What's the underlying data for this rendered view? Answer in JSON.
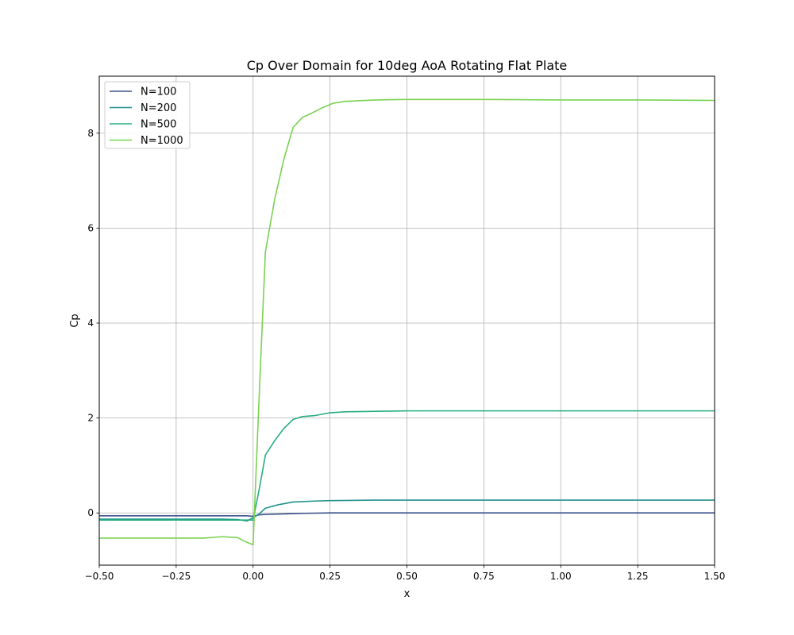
{
  "chart_data": {
    "type": "line",
    "title": "Cp Over Domain for 10deg AoA Rotating Flat Plate",
    "xlabel": "x",
    "ylabel": "Cp",
    "xlim": [
      -0.5,
      1.5
    ],
    "ylim": [
      -1.1,
      9.2
    ],
    "xticks": [
      -0.5,
      -0.25,
      0.0,
      0.25,
      0.5,
      0.75,
      1.0,
      1.25,
      1.5
    ],
    "xtick_labels": [
      "−0.50",
      "−0.25",
      "0.00",
      "0.25",
      "0.50",
      "0.75",
      "1.00",
      "1.25",
      "1.50"
    ],
    "yticks": [
      0,
      2,
      4,
      6,
      8
    ],
    "ytick_labels": [
      "0",
      "2",
      "4",
      "6",
      "8"
    ],
    "grid": true,
    "legend": "upper-left",
    "series": [
      {
        "name": "N=100",
        "color": "#3b528b",
        "x": [
          -0.5,
          -0.2,
          -0.05,
          -0.02,
          0.0,
          0.02,
          0.05,
          0.1,
          0.15,
          0.25,
          0.5,
          0.75,
          1.0,
          1.25,
          1.5
        ],
        "y": [
          -0.06,
          -0.06,
          -0.06,
          -0.06,
          -0.07,
          -0.04,
          -0.03,
          -0.02,
          -0.01,
          0.0,
          0.0,
          0.0,
          0.0,
          0.0,
          0.0
        ]
      },
      {
        "name": "N=200",
        "color": "#21918c",
        "x": [
          -0.5,
          -0.2,
          -0.1,
          -0.05,
          -0.02,
          0.0,
          0.02,
          0.04,
          0.08,
          0.13,
          0.2,
          0.25,
          0.4,
          0.75,
          1.0,
          1.25,
          1.5
        ],
        "y": [
          -0.13,
          -0.13,
          -0.13,
          -0.14,
          -0.17,
          -0.1,
          -0.02,
          0.1,
          0.17,
          0.23,
          0.25,
          0.26,
          0.27,
          0.27,
          0.27,
          0.27,
          0.27
        ]
      },
      {
        "name": "N=500",
        "color": "#27ad81",
        "x": [
          -0.5,
          -0.2,
          -0.15,
          -0.1,
          -0.05,
          -0.02,
          0.0,
          0.02,
          0.04,
          0.07,
          0.1,
          0.13,
          0.16,
          0.2,
          0.25,
          0.3,
          0.4,
          0.5,
          0.75,
          1.0,
          1.25,
          1.5
        ],
        "y": [
          -0.15,
          -0.15,
          -0.15,
          -0.15,
          -0.15,
          -0.15,
          -0.15,
          0.5,
          1.22,
          1.52,
          1.78,
          1.97,
          2.03,
          2.05,
          2.11,
          2.13,
          2.14,
          2.15,
          2.15,
          2.15,
          2.15,
          2.15
        ]
      },
      {
        "name": "N=1000",
        "color": "#7ad151",
        "x": [
          -0.5,
          -0.25,
          -0.16,
          -0.1,
          -0.05,
          -0.02,
          0.0,
          0.02,
          0.04,
          0.07,
          0.1,
          0.13,
          0.16,
          0.19,
          0.22,
          0.26,
          0.3,
          0.4,
          0.5,
          0.75,
          1.0,
          1.25,
          1.5
        ],
        "y": [
          -0.53,
          -0.53,
          -0.53,
          -0.5,
          -0.52,
          -0.62,
          -0.67,
          2.5,
          5.5,
          6.6,
          7.45,
          8.12,
          8.33,
          8.42,
          8.52,
          8.63,
          8.67,
          8.7,
          8.71,
          8.71,
          8.7,
          8.7,
          8.69
        ]
      }
    ]
  }
}
